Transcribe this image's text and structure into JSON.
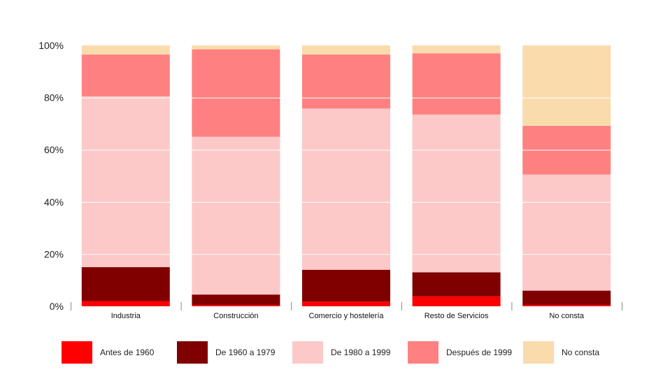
{
  "chart_data": {
    "type": "bar",
    "stacked": true,
    "categories": [
      "Industria",
      "Construcción",
      "Comercio y hostelería",
      "Resto de Servicios",
      "No consta"
    ],
    "series": [
      {
        "name": "Antes de 1960",
        "color": "#ff0000",
        "values": [
          2,
          0.5,
          1.8,
          3.8,
          0.5
        ]
      },
      {
        "name": "De 1960 a 1979",
        "color": "#800000",
        "values": [
          13,
          4,
          12.2,
          9.2,
          5.5
        ]
      },
      {
        "name": "De 1980 a 1999",
        "color": "#fcc8c8",
        "values": [
          65.5,
          60.5,
          61.8,
          60.5,
          44.5
        ]
      },
      {
        "name": "Después de 1999",
        "color": "#ff8080",
        "values": [
          16,
          33.5,
          20.7,
          23.5,
          18.7
        ]
      },
      {
        "name": "No consta",
        "color": "#fadbac",
        "values": [
          3.5,
          1.5,
          3.5,
          3,
          30.8
        ]
      }
    ],
    "ylim": [
      0,
      100
    ],
    "yticks": [
      "0%",
      "20%",
      "40%",
      "60%",
      "80%",
      "100%"
    ],
    "grid": true,
    "legend_position": "bottom",
    "title": "",
    "xlabel": "",
    "ylabel": ""
  }
}
